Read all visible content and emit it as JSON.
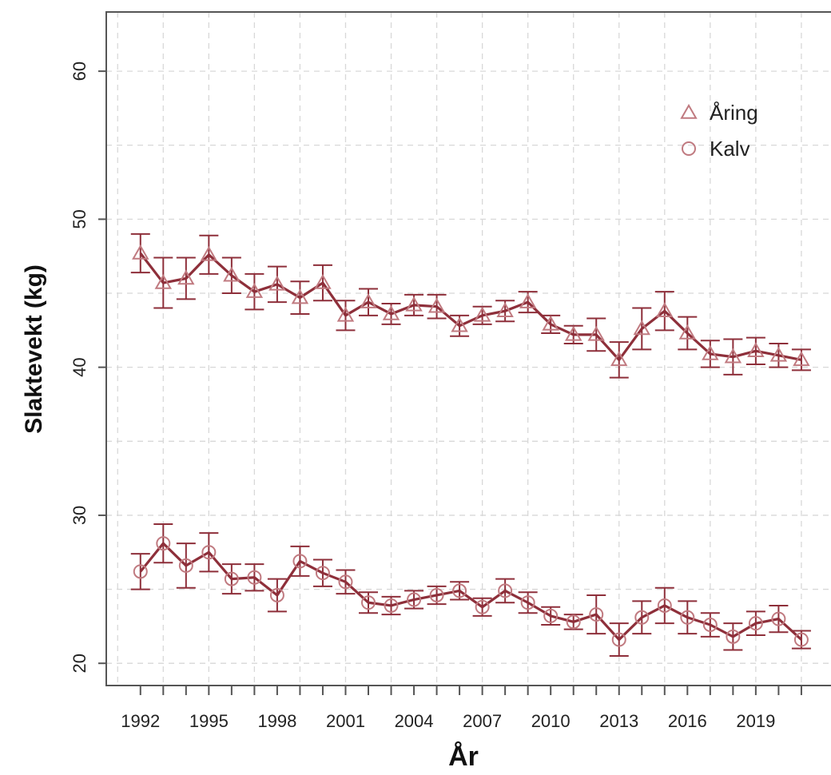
{
  "chart_data": {
    "type": "line",
    "xlabel": "År",
    "ylabel": "Slaktevekt (kg)",
    "xlim": [
      1990.5,
      2022.3
    ],
    "ylim": [
      18.5,
      64
    ],
    "x_ticks": [
      1992,
      1995,
      1998,
      2001,
      2004,
      2007,
      2010,
      2013,
      2016,
      2019
    ],
    "y_ticks": [
      20,
      30,
      40,
      50,
      60
    ],
    "grid": true,
    "legend_position": "top-right",
    "colors": {
      "line": "#8e2f3a",
      "marker": "#c07a80",
      "grid": "#d8d8d8",
      "axis": "#555555"
    },
    "series": [
      {
        "name": "Åring",
        "marker": "triangle",
        "x": [
          1992,
          1993,
          1994,
          1995,
          1996,
          1997,
          1998,
          1999,
          2000,
          2001,
          2002,
          2003,
          2004,
          2005,
          2006,
          2007,
          2008,
          2009,
          2010,
          2011,
          2012,
          2013,
          2014,
          2015,
          2016,
          2017,
          2018,
          2019,
          2020,
          2021
        ],
        "values": [
          47.7,
          45.7,
          46.0,
          47.6,
          46.2,
          45.1,
          45.6,
          44.7,
          45.7,
          43.5,
          44.4,
          43.6,
          44.2,
          44.1,
          42.8,
          43.5,
          43.8,
          44.4,
          42.9,
          42.2,
          42.2,
          40.5,
          42.6,
          43.8,
          42.3,
          40.9,
          40.7,
          41.1,
          40.8,
          40.5
        ],
        "errors": [
          1.3,
          1.7,
          1.4,
          1.3,
          1.2,
          1.2,
          1.2,
          1.1,
          1.2,
          1.0,
          0.9,
          0.7,
          0.7,
          0.8,
          0.7,
          0.6,
          0.7,
          0.7,
          0.6,
          0.6,
          1.1,
          1.2,
          1.4,
          1.3,
          1.1,
          0.9,
          1.2,
          0.9,
          0.8,
          0.7
        ]
      },
      {
        "name": "Kalv",
        "marker": "circle",
        "x": [
          1992,
          1993,
          1994,
          1995,
          1996,
          1997,
          1998,
          1999,
          2000,
          2001,
          2002,
          2003,
          2004,
          2005,
          2006,
          2007,
          2008,
          2009,
          2010,
          2011,
          2012,
          2013,
          2014,
          2015,
          2016,
          2017,
          2018,
          2019,
          2020,
          2021
        ],
        "values": [
          26.2,
          28.1,
          26.6,
          27.5,
          25.7,
          25.8,
          24.6,
          26.9,
          26.1,
          25.5,
          24.1,
          23.9,
          24.3,
          24.6,
          24.9,
          23.8,
          24.9,
          24.1,
          23.2,
          22.8,
          23.3,
          21.6,
          23.1,
          23.9,
          23.1,
          22.6,
          21.8,
          22.7,
          23.0,
          21.6
        ],
        "errors": [
          1.2,
          1.3,
          1.5,
          1.3,
          1.0,
          0.9,
          1.1,
          1.0,
          0.9,
          0.8,
          0.7,
          0.6,
          0.6,
          0.6,
          0.6,
          0.6,
          0.8,
          0.7,
          0.6,
          0.5,
          1.3,
          1.1,
          1.1,
          1.2,
          1.1,
          0.8,
          0.9,
          0.8,
          0.9,
          0.6
        ]
      }
    ]
  }
}
